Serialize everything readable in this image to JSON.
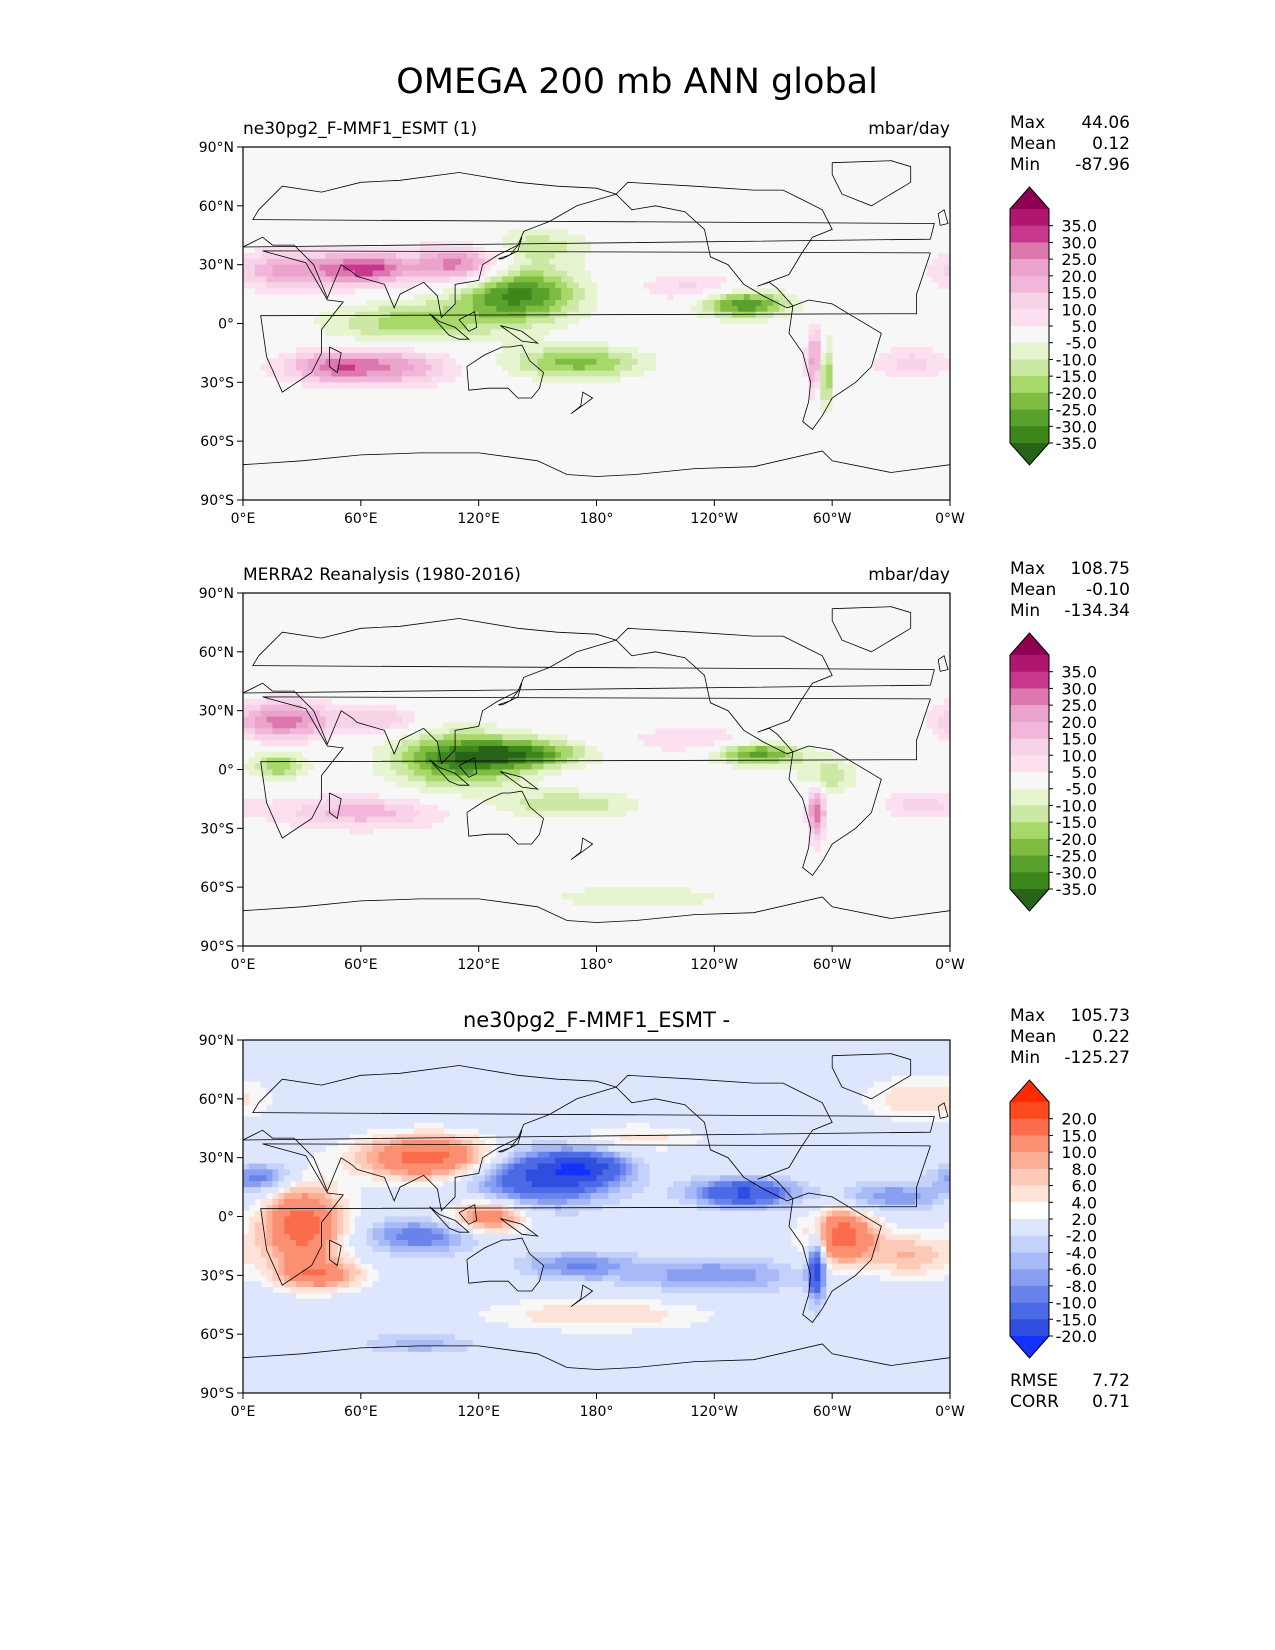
{
  "figure": {
    "title": "OMEGA 200 mb ANN global"
  },
  "panels": [
    {
      "title_left": "ne30pg2_F-MMF1_ESMT (1)",
      "title_center": "",
      "title_right": "mbar/day",
      "stats": [
        {
          "label": "Max",
          "value": "44.06"
        },
        {
          "label": "Mean",
          "value": "0.12"
        },
        {
          "label": "Min",
          "value": "-87.96"
        }
      ],
      "extra_stats": [],
      "colorbar": {
        "labels": [
          "35.0",
          "30.0",
          "25.0",
          "20.0",
          "15.0",
          "10.0",
          "5.0",
          "-5.0",
          "-10.0",
          "-15.0",
          "-20.0",
          "-25.0",
          "-30.0",
          "-35.0"
        ],
        "colors": [
          "#8e0152",
          "#b0156f",
          "#c7378e",
          "#de77ae",
          "#eaa3cb",
          "#f1b6da",
          "#f7d3e8",
          "#fde0ef",
          "#f7f7f7",
          "#e6f5d0",
          "#cbe8a5",
          "#a6d96a",
          "#7fbc41",
          "#5aa02c",
          "#3d861c",
          "#276419"
        ],
        "top_color": "#8e0152",
        "bottom_color": "#276419"
      },
      "features": [
        {
          "lon": 25,
          "lat": 27,
          "rlon": 22,
          "rlat": 7,
          "v": 22
        },
        {
          "lon": 65,
          "lat": 28,
          "rlon": 16,
          "rlat": 6,
          "v": 28
        },
        {
          "lon": 110,
          "lat": 30,
          "rlon": 16,
          "rlat": 7,
          "v": 30
        },
        {
          "lon": 45,
          "lat": -22,
          "rlon": 18,
          "rlat": 6,
          "v": 25
        },
        {
          "lon": 80,
          "lat": -22,
          "rlon": 20,
          "rlat": 7,
          "v": 20
        },
        {
          "lon": 140,
          "lat": 15,
          "rlon": 22,
          "rlat": 10,
          "v": -32
        },
        {
          "lon": 85,
          "lat": 0,
          "rlon": 30,
          "rlat": 8,
          "v": -18
        },
        {
          "lon": 170,
          "lat": -20,
          "rlon": 24,
          "rlat": 6,
          "v": -22
        },
        {
          "lon": 255,
          "lat": 10,
          "rlon": 16,
          "rlat": 5,
          "v": -30
        },
        {
          "lon": 292,
          "lat": -20,
          "rlon": 3,
          "rlat": 12,
          "v": 32
        },
        {
          "lon": 296,
          "lat": -25,
          "rlon": 3,
          "rlat": 12,
          "v": -28
        },
        {
          "lon": 150,
          "lat": 40,
          "rlon": 20,
          "rlat": 6,
          "v": -12
        },
        {
          "lon": 230,
          "lat": 18,
          "rlon": 20,
          "rlat": 5,
          "v": 12
        },
        {
          "lon": 340,
          "lat": -20,
          "rlon": 14,
          "rlat": 6,
          "v": 12
        }
      ]
    },
    {
      "title_left": "MERRA2 Reanalysis (1980-2016)",
      "title_center": "",
      "title_right": "mbar/day",
      "stats": [
        {
          "label": "Max",
          "value": "108.75"
        },
        {
          "label": "Mean",
          "value": "-0.10"
        },
        {
          "label": "Min",
          "value": "-134.34"
        }
      ],
      "extra_stats": [],
      "colorbar": {
        "labels": [
          "35.0",
          "30.0",
          "25.0",
          "20.0",
          "15.0",
          "10.0",
          "5.0",
          "-5.0",
          "-10.0",
          "-15.0",
          "-20.0",
          "-25.0",
          "-30.0",
          "-35.0"
        ],
        "colors": [
          "#8e0152",
          "#b0156f",
          "#c7378e",
          "#de77ae",
          "#eaa3cb",
          "#f1b6da",
          "#f7d3e8",
          "#fde0ef",
          "#f7f7f7",
          "#e6f5d0",
          "#cbe8a5",
          "#a6d96a",
          "#7fbc41",
          "#5aa02c",
          "#3d861c",
          "#276419"
        ],
        "top_color": "#8e0152",
        "bottom_color": "#276419"
      },
      "features": [
        {
          "lon": 20,
          "lat": 25,
          "rlon": 18,
          "rlat": 7,
          "v": 28
        },
        {
          "lon": 70,
          "lat": 25,
          "rlon": 14,
          "rlat": 5,
          "v": 15
        },
        {
          "lon": 110,
          "lat": 5,
          "rlon": 24,
          "rlat": 10,
          "v": -30
        },
        {
          "lon": 145,
          "lat": 8,
          "rlon": 22,
          "rlat": 5,
          "v": -25
        },
        {
          "lon": 60,
          "lat": -22,
          "rlon": 30,
          "rlat": 6,
          "v": 18
        },
        {
          "lon": 18,
          "lat": 2,
          "rlon": 10,
          "rlat": 5,
          "v": -20
        },
        {
          "lon": 165,
          "lat": -18,
          "rlon": 25,
          "rlat": 5,
          "v": -15
        },
        {
          "lon": 262,
          "lat": 8,
          "rlon": 16,
          "rlat": 4,
          "v": -28
        },
        {
          "lon": 298,
          "lat": -3,
          "rlon": 10,
          "rlat": 6,
          "v": -15
        },
        {
          "lon": 292,
          "lat": -22,
          "rlon": 3,
          "rlat": 10,
          "v": 30
        },
        {
          "lon": 230,
          "lat": 15,
          "rlon": 25,
          "rlat": 5,
          "v": 10
        },
        {
          "lon": 200,
          "lat": -65,
          "rlon": 40,
          "rlat": 5,
          "v": -8
        },
        {
          "lon": 345,
          "lat": -18,
          "rlon": 14,
          "rlat": 5,
          "v": 12
        }
      ]
    },
    {
      "title_left": "",
      "title_center": "ne30pg2_F-MMF1_ESMT -",
      "title_right": "",
      "stats": [
        {
          "label": "Max",
          "value": "105.73"
        },
        {
          "label": "Mean",
          "value": "0.22"
        },
        {
          "label": "Min",
          "value": "-125.27"
        }
      ],
      "extra_stats": [
        {
          "label": "RMSE",
          "value": "7.72"
        },
        {
          "label": "CORR",
          "value": "0.71"
        }
      ],
      "colorbar": {
        "labels": [
          "20.0",
          "15.0",
          "10.0",
          "8.0",
          "6.0",
          "4.0",
          "2.0",
          "-2.0",
          "-4.0",
          "-6.0",
          "-8.0",
          "-10.0",
          "-15.0",
          "-20.0"
        ],
        "colors": [
          "#ff2a00",
          "#ff4a1f",
          "#fc6c4c",
          "#fb8f72",
          "#fcae97",
          "#fdcab8",
          "#fee4d8",
          "#ffffff",
          "#dde6fd",
          "#c4d1fb",
          "#a7b9f7",
          "#889ef1",
          "#6884ec",
          "#4c69e6",
          "#2f4ee0",
          "#1431ff"
        ],
        "top_color": "#ff2a00",
        "bottom_color": "#1431ff"
      },
      "features": [
        {
          "lon": 30,
          "lat": -5,
          "rlon": 15,
          "rlat": 15,
          "v": 18
        },
        {
          "lon": 95,
          "lat": 30,
          "rlon": 25,
          "rlat": 8,
          "v": 18
        },
        {
          "lon": 150,
          "lat": 20,
          "rlon": 25,
          "rlat": 10,
          "v": -16
        },
        {
          "lon": 175,
          "lat": 25,
          "rlon": 15,
          "rlat": 6,
          "v": -12
        },
        {
          "lon": 255,
          "lat": 12,
          "rlon": 18,
          "rlat": 5,
          "v": -16
        },
        {
          "lon": 305,
          "lat": -10,
          "rlon": 12,
          "rlat": 10,
          "v": 18
        },
        {
          "lon": 292,
          "lat": -25,
          "rlon": 3,
          "rlat": 12,
          "v": -18
        },
        {
          "lon": 10,
          "lat": 20,
          "rlon": 12,
          "rlat": 5,
          "v": -10
        },
        {
          "lon": 90,
          "lat": -10,
          "rlon": 20,
          "rlat": 6,
          "v": -10
        },
        {
          "lon": 125,
          "lat": 0,
          "rlon": 14,
          "rlat": 6,
          "v": 14
        },
        {
          "lon": 40,
          "lat": -30,
          "rlon": 15,
          "rlat": 5,
          "v": 12
        },
        {
          "lon": 240,
          "lat": -30,
          "rlon": 30,
          "rlat": 6,
          "v": -8
        },
        {
          "lon": 180,
          "lat": -50,
          "rlon": 40,
          "rlat": 6,
          "v": 6
        },
        {
          "lon": 340,
          "lat": -20,
          "rlon": 15,
          "rlat": 8,
          "v": 8
        },
        {
          "lon": 200,
          "lat": 40,
          "rlon": 25,
          "rlat": 5,
          "v": 5
        },
        {
          "lon": 170,
          "lat": -25,
          "rlon": 20,
          "rlat": 5,
          "v": -8
        },
        {
          "lon": 345,
          "lat": 60,
          "rlon": 20,
          "rlat": 8,
          "v": 6
        },
        {
          "lon": 90,
          "lat": -65,
          "rlon": 20,
          "rlat": 4,
          "v": -5
        },
        {
          "lon": 330,
          "lat": 10,
          "rlon": 20,
          "rlat": 5,
          "v": -8
        }
      ]
    }
  ],
  "axes": {
    "x_ticks": [
      "0°E",
      "60°E",
      "120°E",
      "180°",
      "120°W",
      "60°W",
      "0°W"
    ],
    "y_ticks": [
      "90°N",
      "60°N",
      "30°N",
      "0°",
      "30°S",
      "60°S",
      "90°S"
    ],
    "land_color": "#f7f7f7"
  },
  "chart_data": [
    {
      "type": "heatmap",
      "title": "ne30pg2_F-MMF1_ESMT (1)",
      "units": "mbar/day",
      "x": [
        0,
        60,
        120,
        180,
        240,
        300,
        360
      ],
      "y": [
        90,
        60,
        30,
        0,
        -30,
        -60,
        -90
      ],
      "xlim": [
        0,
        360
      ],
      "ylim": [
        -90,
        90
      ],
      "levels": [
        -35,
        -30,
        -25,
        -20,
        -15,
        -10,
        -5,
        5,
        10,
        15,
        20,
        25,
        30,
        35
      ],
      "max": 44.06,
      "mean": 0.12,
      "min": -87.96
    },
    {
      "type": "heatmap",
      "title": "MERRA2 Reanalysis (1980-2016)",
      "units": "mbar/day",
      "x": [
        0,
        60,
        120,
        180,
        240,
        300,
        360
      ],
      "y": [
        90,
        60,
        30,
        0,
        -30,
        -60,
        -90
      ],
      "xlim": [
        0,
        360
      ],
      "ylim": [
        -90,
        90
      ],
      "levels": [
        -35,
        -30,
        -25,
        -20,
        -15,
        -10,
        -5,
        5,
        10,
        15,
        20,
        25,
        30,
        35
      ],
      "max": 108.75,
      "mean": -0.1,
      "min": -134.34
    },
    {
      "type": "heatmap",
      "title": "ne30pg2_F-MMF1_ESMT -",
      "x": [
        0,
        60,
        120,
        180,
        240,
        300,
        360
      ],
      "y": [
        90,
        60,
        30,
        0,
        -30,
        -60,
        -90
      ],
      "xlim": [
        0,
        360
      ],
      "ylim": [
        -90,
        90
      ],
      "levels": [
        -20,
        -15,
        -10,
        -8,
        -6,
        -4,
        -2,
        2,
        4,
        6,
        8,
        10,
        15,
        20
      ],
      "max": 105.73,
      "mean": 0.22,
      "min": -125.27,
      "rmse": 7.72,
      "corr": 0.71
    }
  ]
}
